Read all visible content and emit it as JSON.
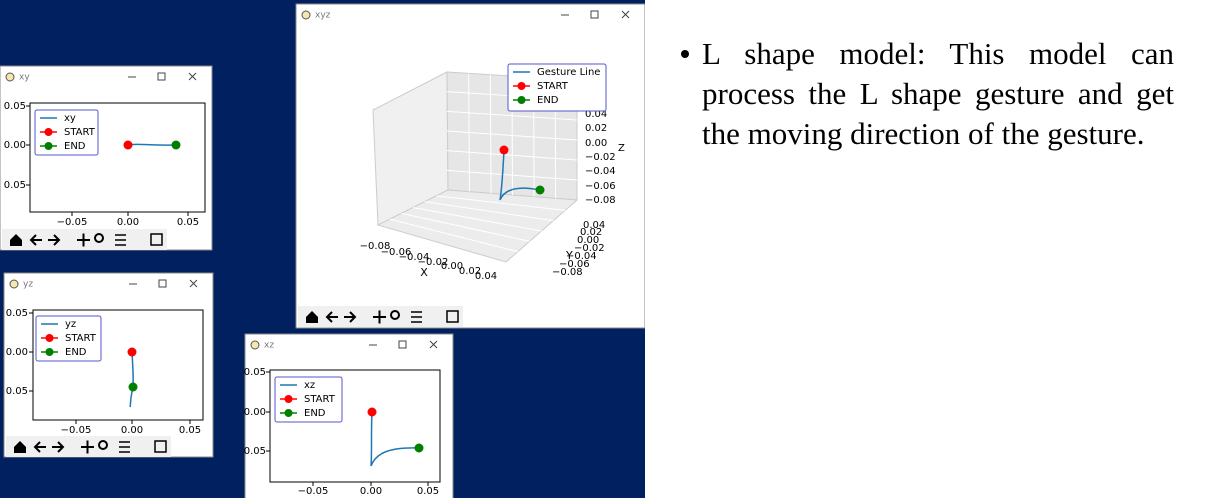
{
  "windows": [
    {
      "title": "xy",
      "legend": [
        "xy",
        "START",
        "END"
      ],
      "xticks": [
        "−0.05",
        "0.00",
        "0.05"
      ],
      "yticks": [
        "0.05",
        "0.00",
        "0.05"
      ]
    },
    {
      "title": "yz",
      "legend": [
        "yz",
        "START",
        "END"
      ],
      "xticks": [
        "−0.05",
        "0.00",
        "0.05"
      ],
      "yticks": [
        "0.05",
        "0.00",
        "0.05"
      ]
    },
    {
      "title": "xz",
      "legend": [
        "xz",
        "START",
        "END"
      ],
      "xticks": [
        "−0.05",
        "0.00",
        "0.05"
      ],
      "yticks": [
        "0.05",
        "0.00",
        "0.05"
      ]
    },
    {
      "title": "xyz",
      "legend": [
        "Gesture Line",
        "START",
        "END"
      ],
      "xticks": [
        "−0.08",
        "−0.06",
        "−0.04",
        "−0.02",
        "0.00",
        "0.02",
        "0.04"
      ],
      "yticks": [
        "0.04",
        "0.02",
        "0.00",
        "−0.02",
        "−0.04",
        "−0.06",
        "−0.08"
      ],
      "zticks": [
        "0.04",
        "0.02",
        "0.00",
        "−0.02",
        "−0.04",
        "−0.06",
        "−0.08"
      ],
      "xlabel": "X",
      "ylabel": "Y",
      "zlabel": "Z"
    }
  ],
  "bullet": "L shape model: This model can process the L shape gesture and get the moving direction of the gesture."
}
